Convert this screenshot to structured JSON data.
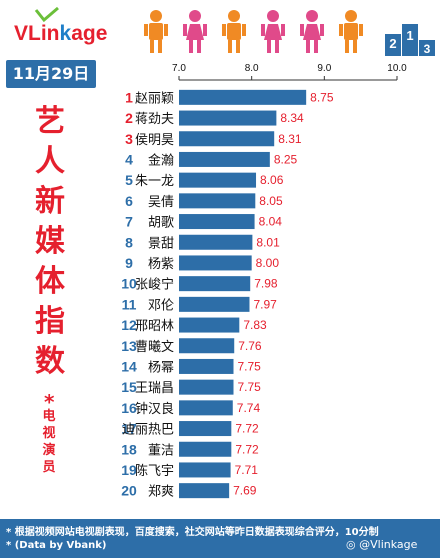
{
  "brand": {
    "logo_text_v": "VLin",
    "logo_text_k": "k",
    "logo_text_rest": "age",
    "weibo": "Vlinkage"
  },
  "date_badge": "11月29日",
  "title_chars": [
    "艺",
    "人",
    "新",
    "媒",
    "体",
    "指",
    "数"
  ],
  "star_note": "*",
  "subtitle_chars": [
    "电",
    "视",
    "演",
    "员"
  ],
  "footer": {
    "line1": "* 根据视频网站电视剧表现，百度搜索，社交网站等昨日数据表现综合评分，10分制",
    "line2": "* (Data by Vbank)"
  },
  "colors": {
    "rank_red": "#e5202e",
    "rank_blue": "#2d6ea8",
    "bar": "#2d6ea8",
    "value": "#e5202e"
  },
  "chart_data": {
    "type": "bar",
    "orientation": "horizontal",
    "xlim": [
      7.0,
      10.0
    ],
    "ticks": [
      "7.0",
      "8.0",
      "9.0",
      "10.0"
    ],
    "tick_values": [
      7.0,
      8.0,
      9.0,
      10.0
    ],
    "ranks": [
      "1",
      "2",
      "3",
      "4",
      "5",
      "6",
      "7",
      "8",
      "9",
      "10",
      "11",
      "12",
      "13",
      "14",
      "15",
      "16",
      "17",
      "18",
      "19",
      "20"
    ],
    "categories": [
      "赵丽颖",
      "蒋劲夫",
      "侯明昊",
      "金瀚",
      "朱一龙",
      "吴倩",
      "胡歌",
      "景甜",
      "杨紫",
      "张峻宁",
      "邓伦",
      "邢昭林",
      "曹曦文",
      "杨幂",
      "王瑞昌",
      "钟汉良",
      "迪丽热巴",
      "董洁",
      "陈飞宇",
      "郑爽"
    ],
    "values": [
      8.75,
      8.34,
      8.31,
      8.25,
      8.06,
      8.05,
      8.04,
      8.01,
      8.0,
      7.98,
      7.97,
      7.83,
      7.76,
      7.75,
      7.75,
      7.74,
      7.72,
      7.72,
      7.71,
      7.69
    ],
    "value_labels": [
      "8.75",
      "8.34",
      "8.31",
      "8.25",
      "8.06",
      "8.05",
      "8.04",
      "8.01",
      "8.00",
      "7.98",
      "7.97",
      "7.83",
      "7.76",
      "7.75",
      "7.75",
      "7.74",
      "7.72",
      "7.72",
      "7.71",
      "7.69"
    ],
    "grid": false,
    "legend": "none"
  }
}
